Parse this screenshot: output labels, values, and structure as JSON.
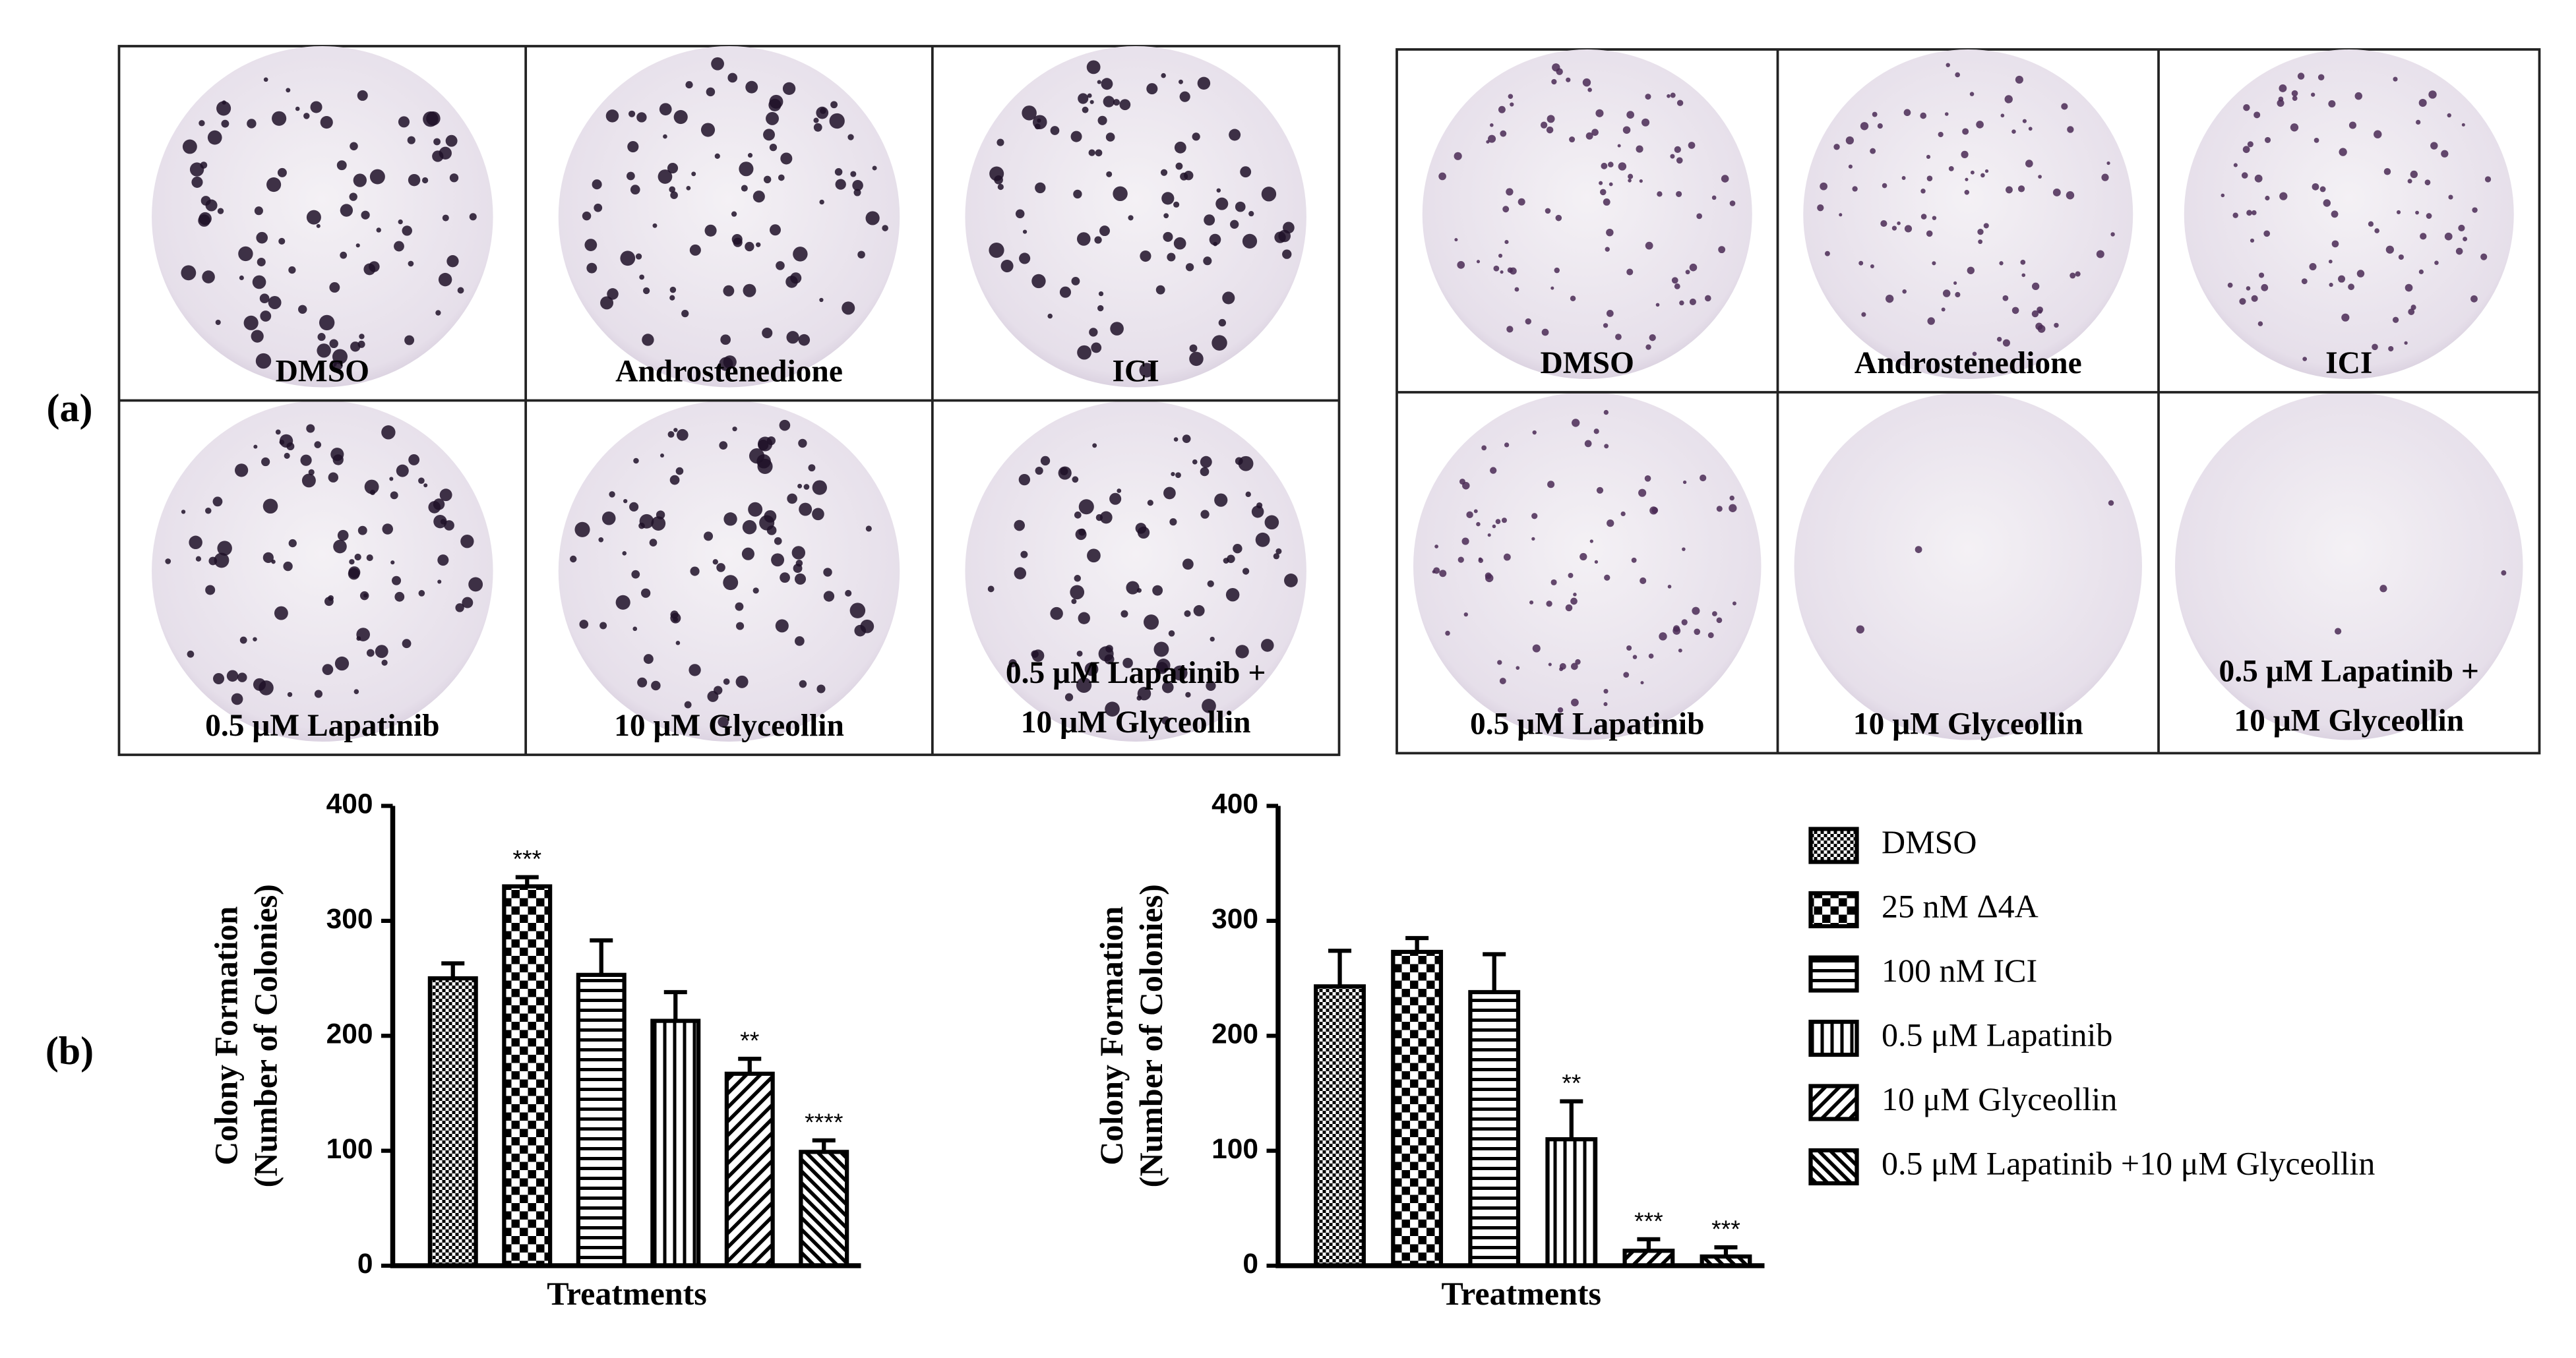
{
  "panel_labels": [
    "(a)",
    "(b)"
  ],
  "plates": [
    {
      "labels": [
        "DMSO",
        "Androstenedione",
        "ICI",
        "0.5 μM Lapatinib",
        "10 μM Glyceollin",
        [
          "0.5 μM Lapatinib +",
          "10 μM Glyceollin"
        ]
      ]
    },
    {
      "labels": [
        "DMSO",
        "Androstenedione",
        "ICI",
        "0.5 μM Lapatinib",
        "10 μM Glyceollin",
        [
          "0.5 μM Lapatinib +",
          "10 μM Glyceollin"
        ]
      ]
    }
  ],
  "legend": {
    "items": [
      {
        "name": "DMSO",
        "pattern": "dots"
      },
      {
        "name": "25 nM Δ4A",
        "pattern": "checker"
      },
      {
        "name": "100 nM ICI",
        "pattern": "hlines"
      },
      {
        "name": "0.5 μM Lapatinib",
        "pattern": "vlines"
      },
      {
        "name": "10 μM Glyceollin",
        "pattern": "diag"
      },
      {
        "name": "0.5 μM Lapatinib +10 μM Glyceollin",
        "pattern": "diagback"
      }
    ]
  },
  "chart_data": [
    {
      "type": "bar",
      "ylabel": [
        "Colony Formation",
        "(Number of Colonies)"
      ],
      "xlabel": "Treatments",
      "values": [
        250,
        330,
        253,
        213,
        167,
        99
      ],
      "errors": [
        13,
        8,
        30,
        25,
        13,
        10
      ],
      "annotations": [
        null,
        "***",
        null,
        null,
        "**",
        "****"
      ],
      "ylim": [
        0,
        400
      ],
      "yticks": [
        0,
        100,
        200,
        300,
        400
      ]
    },
    {
      "type": "bar",
      "ylabel": [
        "Colony Formation",
        "(Number of Colonies)"
      ],
      "xlabel": "Treatments",
      "values": [
        243,
        273,
        238,
        110,
        13,
        8
      ],
      "errors": [
        31,
        12,
        33,
        33,
        10,
        8
      ],
      "annotations": [
        null,
        null,
        null,
        "**",
        "***",
        "***"
      ],
      "ylim": [
        0,
        400
      ],
      "yticks": [
        0,
        100,
        200,
        300,
        400
      ]
    }
  ]
}
